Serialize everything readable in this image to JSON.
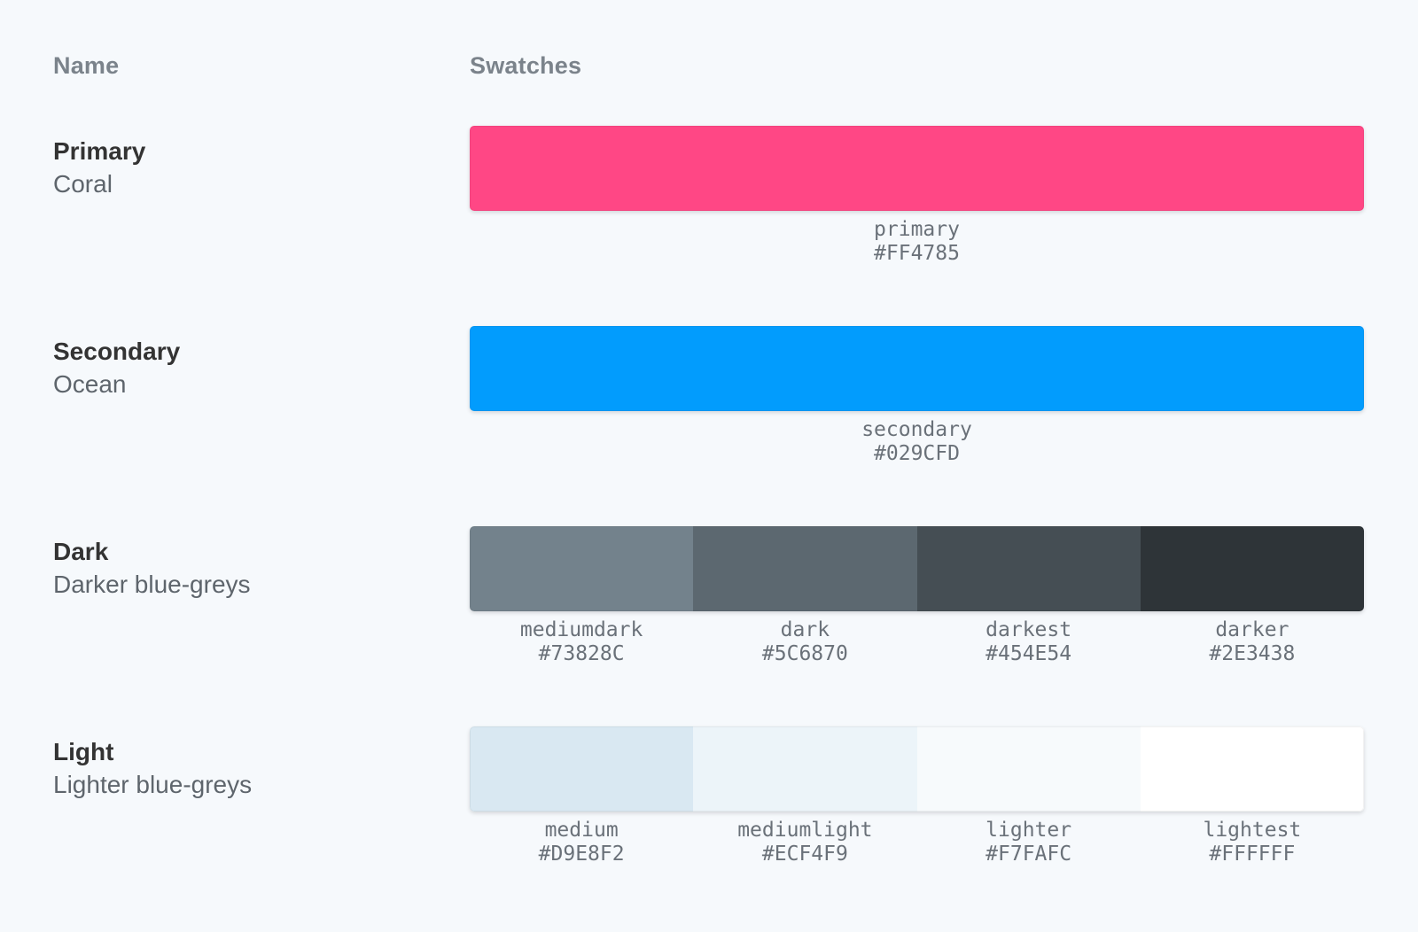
{
  "page": {
    "background": "#F6F9FC"
  },
  "palette": {
    "header": {
      "name_label": "Name",
      "swatches_label": "Swatches"
    },
    "rows": [
      {
        "title": "Primary",
        "subtitle": "Coral",
        "swatches": [
          {
            "name": "primary",
            "hex": "#FF4785"
          }
        ]
      },
      {
        "title": "Secondary",
        "subtitle": "Ocean",
        "swatches": [
          {
            "name": "secondary",
            "hex": "#029CFD"
          }
        ]
      },
      {
        "title": "Dark",
        "subtitle": "Darker blue-greys",
        "swatches": [
          {
            "name": "mediumdark",
            "hex": "#73828C"
          },
          {
            "name": "dark",
            "hex": "#5C6870"
          },
          {
            "name": "darkest",
            "hex": "#454E54"
          },
          {
            "name": "darker",
            "hex": "#2E3438"
          }
        ]
      },
      {
        "title": "Light",
        "subtitle": "Lighter blue-greys",
        "swatches": [
          {
            "name": "medium",
            "hex": "#D9E8F2"
          },
          {
            "name": "mediumlight",
            "hex": "#ECF4F9"
          },
          {
            "name": "lighter",
            "hex": "#F7FAFC"
          },
          {
            "name": "lightest",
            "hex": "#FFFFFF"
          }
        ]
      }
    ]
  }
}
